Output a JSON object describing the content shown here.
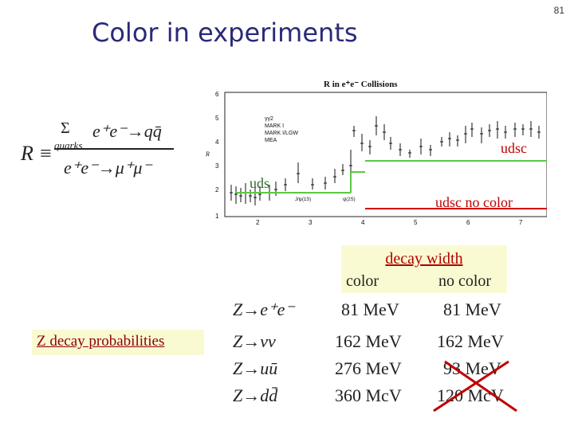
{
  "slide": {
    "number": "81",
    "title": "Color in experiments"
  },
  "r_definition": {
    "lhs": "R ≡",
    "sum_symbol": "Σ",
    "sum_index": "quarks",
    "numerator": "e⁺e⁻→qq̄",
    "denominator": "e⁺e⁻→μ⁺μ⁻"
  },
  "plot": {
    "title": "R in  e⁺e⁻ Collisions",
    "y_axis_title": "R",
    "y_ticks": [
      "6",
      "5",
      "4",
      "3",
      "2",
      "1"
    ],
    "x_ticks": [
      "2",
      "3",
      "4",
      "5",
      "6",
      "7"
    ],
    "legend": [
      "γγ2",
      "MARK I",
      "MARK I/LGW",
      "MEA"
    ],
    "resonance_labels": [
      "J/ψ(1S)",
      "ψ(2S)"
    ],
    "level_labels": {
      "udsc": "udsc",
      "uds": "uds",
      "udsc_no_color": "udsc no color"
    },
    "colors": {
      "green_line": "#5cc845",
      "red_line": "#d00000",
      "data": "#111111"
    }
  },
  "decay_box": {
    "title": "decay width",
    "col_color": "color",
    "col_nocolor": "no color"
  },
  "z_label": "Z decay probabilities",
  "table": {
    "rows": [
      {
        "process": "Z→e⁺e⁻",
        "color": "81 MeV",
        "no_color": "81 MeV"
      },
      {
        "process": "Z→νν",
        "color": "162 MeV",
        "no_color": "162 MeV"
      },
      {
        "process": "Z→uū",
        "color": "276 MeV",
        "no_color": "93 MeV"
      },
      {
        "process": "Z→dd̄",
        "color": "360 McV",
        "no_color": "120 McV"
      }
    ]
  },
  "cross_color": "#c00000"
}
